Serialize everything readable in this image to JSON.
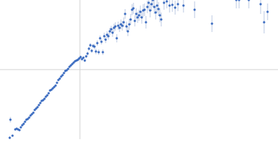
{
  "chart_data": {
    "type": "scatter",
    "x": [
      14,
      15,
      18,
      22,
      24,
      26,
      28,
      30,
      32,
      34,
      36,
      38,
      40,
      42,
      44,
      46,
      48,
      50,
      52,
      54,
      56,
      58,
      60,
      62,
      64,
      66,
      68,
      70,
      72,
      74,
      76,
      78,
      80,
      82,
      84,
      86,
      88,
      90,
      92,
      94,
      96,
      98,
      100,
      102,
      104,
      106,
      108,
      110,
      112,
      114,
      116,
      118,
      120,
      122,
      124,
      126,
      128,
      130,
      132,
      134,
      136,
      138,
      140,
      142,
      144,
      146,
      148,
      150,
      152,
      154,
      156,
      158,
      160,
      162,
      164,
      166,
      168,
      170,
      172,
      174,
      176,
      178,
      180,
      182,
      184,
      186,
      188,
      190,
      192,
      194,
      196,
      198,
      200,
      202,
      204,
      206,
      208,
      210,
      212,
      214,
      216,
      218,
      220,
      222,
      224,
      226,
      228,
      230,
      232,
      236,
      240,
      244,
      248,
      252,
      256,
      264,
      280,
      305,
      340,
      344,
      358,
      375,
      380,
      385
    ],
    "values": [
      2,
      28,
      5,
      14,
      15,
      14,
      13,
      17,
      20,
      22,
      25,
      28,
      29,
      31,
      34,
      36,
      38,
      42,
      44,
      46,
      49,
      52,
      55,
      56,
      58,
      61,
      63,
      66,
      70,
      71,
      73,
      75,
      77,
      81,
      85,
      87,
      90,
      92,
      95,
      98,
      99,
      101,
      104,
      106,
      108,
      110,
      112,
      113,
      114,
      116,
      118,
      115,
      117,
      113,
      119,
      123,
      130,
      135,
      127,
      134,
      133,
      126,
      138,
      125,
      145,
      140,
      125,
      148,
      143,
      150,
      148,
      155,
      158,
      153,
      160,
      162,
      145,
      163,
      160,
      165,
      163,
      168,
      180,
      162,
      155,
      165,
      172,
      186,
      188,
      170,
      180,
      175,
      178,
      183,
      175,
      185,
      186,
      168,
      190,
      196,
      185,
      194,
      200,
      190,
      182,
      192,
      187,
      178,
      172,
      196,
      198,
      192,
      193,
      189,
      194,
      192,
      186,
      166,
      200,
      200,
      200,
      194,
      168,
      183
    ],
    "errors": [
      2,
      4,
      1,
      1,
      1,
      1,
      1,
      1,
      1,
      1,
      1,
      1,
      1,
      1,
      1,
      1,
      1,
      1,
      1,
      1,
      1,
      1,
      1,
      1,
      1,
      1,
      1,
      1,
      1,
      1,
      1,
      1,
      1,
      1,
      1,
      1,
      1,
      1,
      1,
      1,
      1,
      1,
      1,
      1,
      1,
      1,
      1,
      1,
      2,
      2,
      2,
      2,
      2,
      2,
      2,
      3,
      3,
      3,
      3,
      3,
      4,
      4,
      4,
      4,
      4,
      4,
      4,
      5,
      5,
      5,
      5,
      5,
      5,
      6,
      6,
      6,
      6,
      6,
      6,
      7,
      7,
      7,
      7,
      7,
      7,
      8,
      8,
      8,
      8,
      8,
      8,
      8,
      8,
      9,
      9,
      9,
      9,
      9,
      9,
      10,
      10,
      10,
      10,
      10,
      10,
      10,
      10,
      10,
      10,
      10,
      10,
      10,
      10,
      10,
      10,
      10,
      12,
      12,
      12,
      12,
      12,
      14,
      16,
      12
    ],
    "color": "#3a6bc0",
    "error_color": "#b9c7e2",
    "xlim": [
      0,
      400
    ],
    "ylim": [
      0,
      200
    ],
    "reference_lines": {
      "x": 115,
      "y": 100
    }
  }
}
